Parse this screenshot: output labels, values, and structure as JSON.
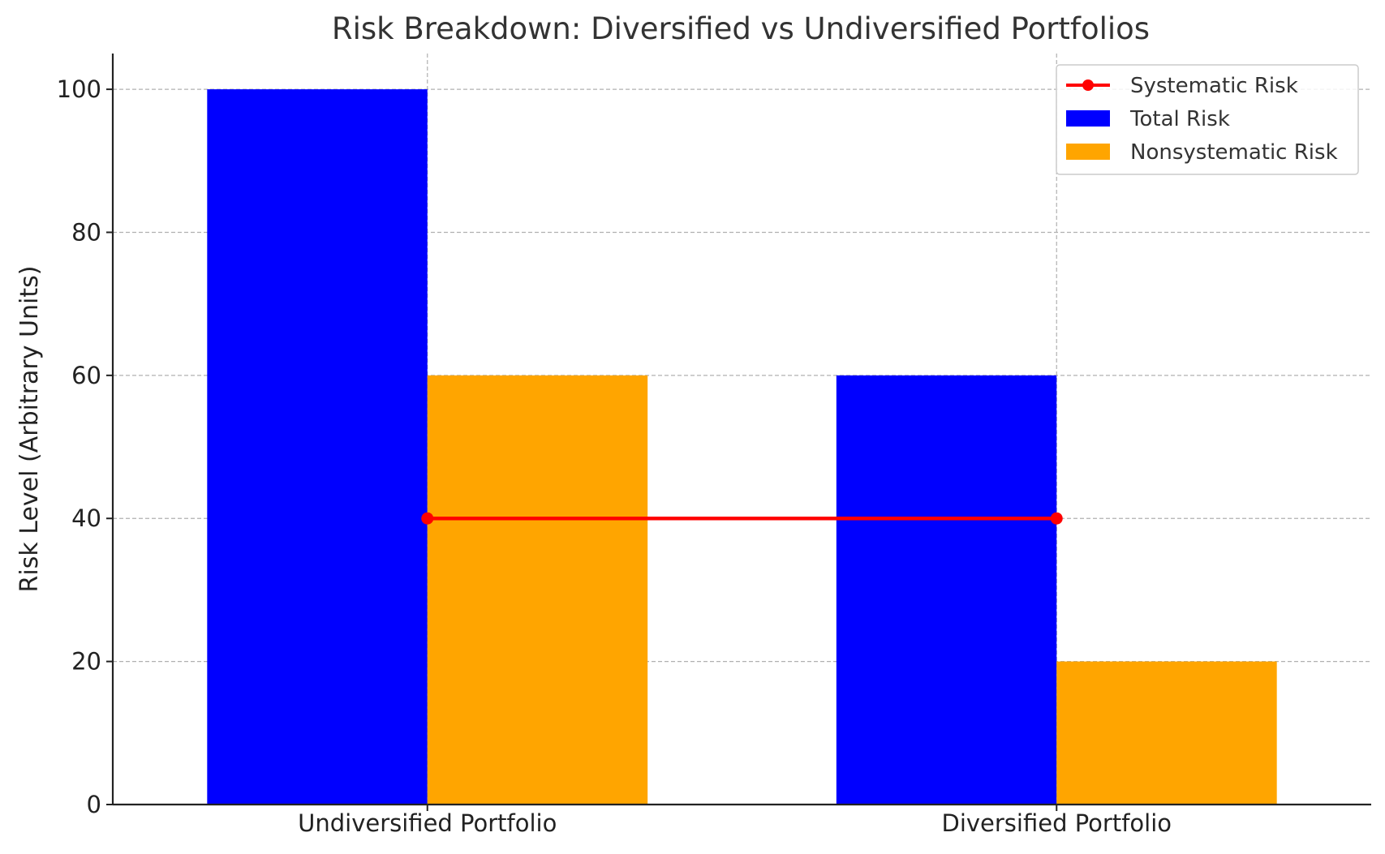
{
  "chart_data": {
    "type": "bar",
    "title": "Risk Breakdown: Diversified vs Undiversified Portfolios",
    "xlabel": "",
    "ylabel": "Risk Level (Arbitrary Units)",
    "categories": [
      "Undiversified Portfolio",
      "Diversified Portfolio"
    ],
    "ylim": [
      0,
      105
    ],
    "yticks": [
      0,
      20,
      40,
      60,
      80,
      100
    ],
    "grid": true,
    "legend_position": "top-right",
    "series": [
      {
        "name": "Total Risk",
        "kind": "bar",
        "color": "#0000ff",
        "values": [
          100,
          60
        ]
      },
      {
        "name": "Nonsystematic Risk",
        "kind": "bar",
        "color": "#ffa500",
        "values": [
          60,
          20
        ]
      },
      {
        "name": "Systematic Risk",
        "kind": "line",
        "color": "#ff0000",
        "values": [
          40,
          40
        ]
      }
    ],
    "legend_order": [
      "Systematic Risk",
      "Total Risk",
      "Nonsystematic Risk"
    ]
  }
}
